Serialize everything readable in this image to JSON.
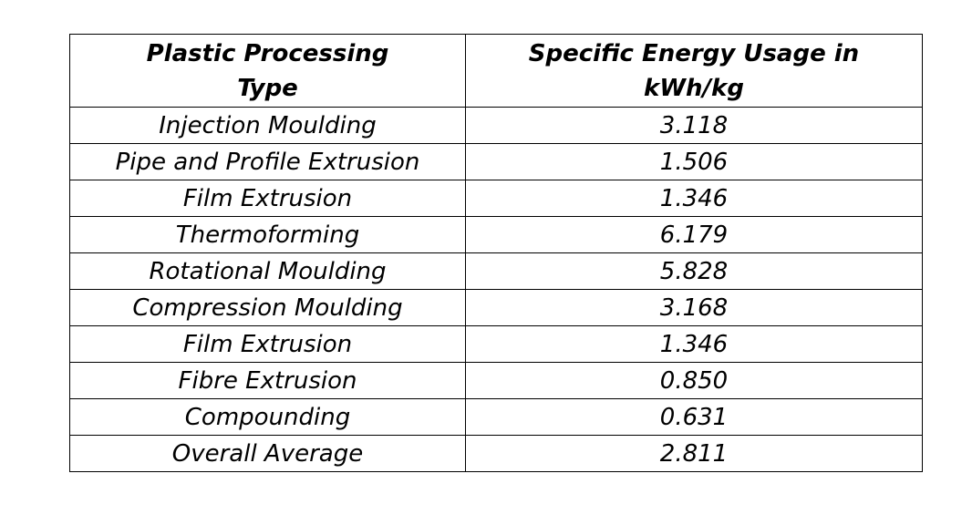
{
  "table": {
    "headers": [
      "Plastic Processing Type",
      "Specific Energy Usage in kWh/kg"
    ],
    "header_lines": [
      [
        "Plastic Processing",
        "Type"
      ],
      [
        "Specific Energy Usage in",
        "kWh/kg"
      ]
    ],
    "rows": [
      {
        "type": "Injection Moulding",
        "value": "3.118"
      },
      {
        "type": "Pipe and Profile Extrusion",
        "value": "1.506"
      },
      {
        "type": "Film Extrusion",
        "value": "1.346"
      },
      {
        "type": "Thermoforming",
        "value": "6.179"
      },
      {
        "type": "Rotational Moulding",
        "value": "5.828"
      },
      {
        "type": "Compression Moulding",
        "value": "3.168"
      },
      {
        "type": "Film Extrusion",
        "value": "1.346"
      },
      {
        "type": "Fibre Extrusion",
        "value": "0.850"
      },
      {
        "type": "Compounding",
        "value": "0.631"
      },
      {
        "type": "Overall Average",
        "value": "2.811"
      }
    ]
  }
}
